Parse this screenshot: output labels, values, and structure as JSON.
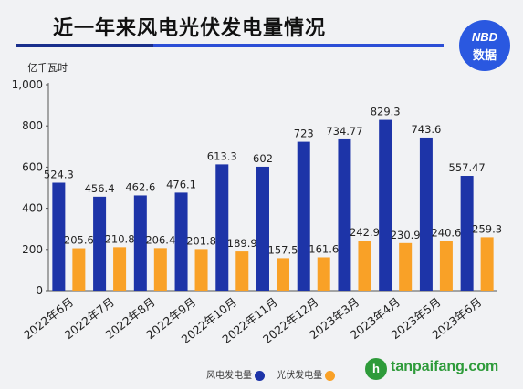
{
  "header": {
    "title": "近一年来风电光伏发电量情况",
    "badge_top": "NBD",
    "badge_bottom": "数据"
  },
  "watermark": {
    "logo": "h",
    "text": "tanpaifang.com"
  },
  "colors": {
    "wind": "#1d34a8",
    "solar": "#f9a127",
    "title_rule_dark": "#1a2f8c",
    "title_rule_light": "#2c4ed6",
    "badge": "#2a58e0",
    "watermark_green": "#2e9b3a"
  },
  "chart_data": {
    "type": "bar",
    "title": "近一年来风电光伏发电量情况",
    "ylabel": "亿千瓦时",
    "ylim": [
      0,
      1000
    ],
    "yticks": [
      0,
      200,
      400,
      600,
      800,
      1000
    ],
    "yticklabels": [
      "0",
      "200",
      "400",
      "600",
      "800",
      "1,000"
    ],
    "grid": false,
    "legend_position": "bottom-center",
    "categories": [
      "2022年6月",
      "2022年7月",
      "2022年8月",
      "2022年9月",
      "2022年10月",
      "2022年11月",
      "2022年12月",
      "2023年3月",
      "2023年4月",
      "2023年5月",
      "2023年6月"
    ],
    "series": [
      {
        "name": "风电发电量",
        "color": "#1d34a8",
        "values": [
          524.3,
          456.4,
          462.6,
          476.1,
          613.3,
          602,
          723,
          734.77,
          829.3,
          743.6,
          557.47
        ],
        "labels": [
          "524.3",
          "456.4",
          "462.6",
          "476.1",
          "613.3",
          "602",
          "723",
          "734.77",
          "829.3",
          "743.6",
          "557.47"
        ]
      },
      {
        "name": "光伏发电量",
        "color": "#f9a127",
        "values": [
          205.6,
          210.8,
          206.4,
          201.8,
          189.9,
          157.5,
          161.6,
          242.9,
          230.9,
          240.6,
          259.3
        ],
        "labels": [
          "205.6",
          "210.8",
          "206.4",
          "201.8",
          "189.9",
          "157.5",
          "161.6",
          "242.9",
          "230.9",
          "240.6",
          "259.3"
        ]
      }
    ]
  }
}
